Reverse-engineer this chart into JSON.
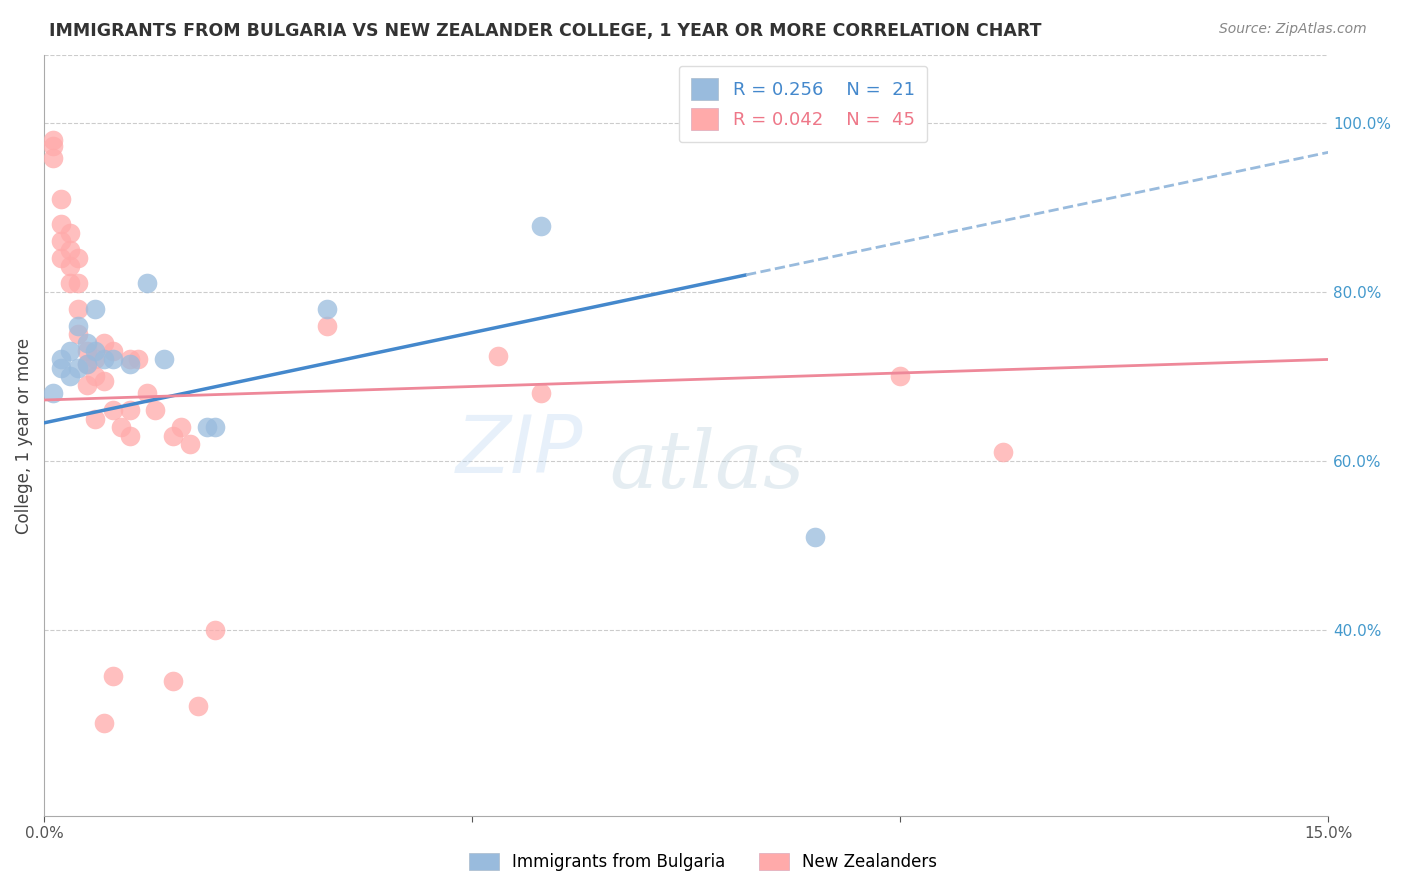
{
  "title": "IMMIGRANTS FROM BULGARIA VS NEW ZEALANDER COLLEGE, 1 YEAR OR MORE CORRELATION CHART",
  "source": "Source: ZipAtlas.com",
  "ylabel": "College, 1 year or more",
  "xlim": [
    0.0,
    0.15
  ],
  "ylim": [
    0.18,
    1.08
  ],
  "yticks_right": [
    0.4,
    0.6,
    0.8,
    1.0
  ],
  "ytick_labels_right": [
    "40.0%",
    "60.0%",
    "80.0%",
    "100.0%"
  ],
  "watermark_zip": "ZIP",
  "watermark_atlas": "atlas",
  "legend_blue_R": "0.256",
  "legend_blue_N": "21",
  "legend_pink_R": "0.042",
  "legend_pink_N": "45",
  "legend_label_blue": "Immigrants from Bulgaria",
  "legend_label_pink": "New Zealanders",
  "blue_color": "#99BBDD",
  "pink_color": "#FFAAAA",
  "blue_line_color": "#4488CC",
  "pink_line_color": "#EE8899",
  "blue_scatter": [
    [
      0.001,
      0.68
    ],
    [
      0.002,
      0.72
    ],
    [
      0.002,
      0.71
    ],
    [
      0.003,
      0.73
    ],
    [
      0.003,
      0.7
    ],
    [
      0.004,
      0.76
    ],
    [
      0.004,
      0.71
    ],
    [
      0.005,
      0.74
    ],
    [
      0.005,
      0.715
    ],
    [
      0.006,
      0.78
    ],
    [
      0.006,
      0.73
    ],
    [
      0.007,
      0.72
    ],
    [
      0.008,
      0.72
    ],
    [
      0.01,
      0.715
    ],
    [
      0.012,
      0.81
    ],
    [
      0.014,
      0.72
    ],
    [
      0.019,
      0.64
    ],
    [
      0.02,
      0.64
    ],
    [
      0.033,
      0.78
    ],
    [
      0.058,
      0.878
    ],
    [
      0.09,
      0.51
    ]
  ],
  "pink_scatter": [
    [
      0.001,
      0.98
    ],
    [
      0.001,
      0.972
    ],
    [
      0.001,
      0.958
    ],
    [
      0.002,
      0.91
    ],
    [
      0.002,
      0.88
    ],
    [
      0.002,
      0.86
    ],
    [
      0.002,
      0.84
    ],
    [
      0.003,
      0.87
    ],
    [
      0.003,
      0.85
    ],
    [
      0.003,
      0.83
    ],
    [
      0.003,
      0.81
    ],
    [
      0.004,
      0.84
    ],
    [
      0.004,
      0.81
    ],
    [
      0.004,
      0.78
    ],
    [
      0.004,
      0.75
    ],
    [
      0.005,
      0.73
    ],
    [
      0.005,
      0.715
    ],
    [
      0.005,
      0.69
    ],
    [
      0.006,
      0.72
    ],
    [
      0.006,
      0.7
    ],
    [
      0.006,
      0.65
    ],
    [
      0.007,
      0.74
    ],
    [
      0.007,
      0.695
    ],
    [
      0.008,
      0.73
    ],
    [
      0.008,
      0.66
    ],
    [
      0.009,
      0.64
    ],
    [
      0.01,
      0.72
    ],
    [
      0.01,
      0.66
    ],
    [
      0.01,
      0.63
    ],
    [
      0.011,
      0.72
    ],
    [
      0.012,
      0.68
    ],
    [
      0.013,
      0.66
    ],
    [
      0.015,
      0.63
    ],
    [
      0.016,
      0.64
    ],
    [
      0.017,
      0.62
    ],
    [
      0.033,
      0.76
    ],
    [
      0.053,
      0.724
    ],
    [
      0.058,
      0.68
    ],
    [
      0.1,
      0.7
    ],
    [
      0.112,
      0.61
    ],
    [
      0.02,
      0.4
    ],
    [
      0.015,
      0.34
    ],
    [
      0.018,
      0.31
    ],
    [
      0.008,
      0.345
    ],
    [
      0.007,
      0.29
    ]
  ],
  "blue_solid_line": {
    "x0": 0.0,
    "y0": 0.645,
    "x1": 0.082,
    "y1": 0.82
  },
  "blue_dashed_line": {
    "x0": 0.082,
    "y0": 0.82,
    "x1": 0.15,
    "y1": 0.965
  },
  "pink_line": {
    "x0": 0.0,
    "y0": 0.672,
    "x1": 0.15,
    "y1": 0.72
  }
}
